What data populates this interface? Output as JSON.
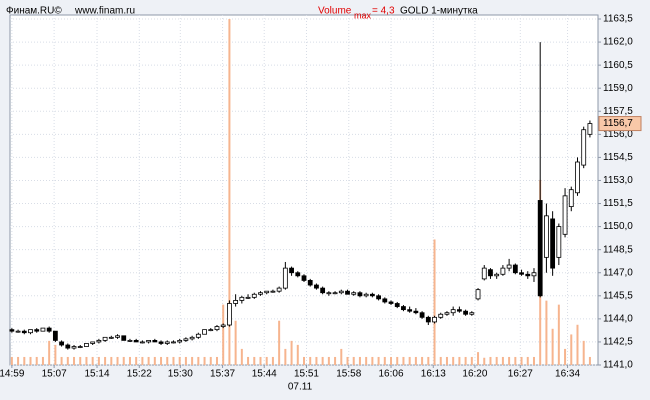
{
  "chart_data": {
    "type": "candlestick",
    "source": "Финам.RU©",
    "site": "www.finam.ru",
    "volume_label": "Volume",
    "volume_sub": "max",
    "volume_max": {
      "value": 4.3,
      "label": "= 4,3"
    },
    "title": "GOLD 1-минутка",
    "date_label": "07.11",
    "last_price": {
      "value": 1156.7,
      "label": "1156,7"
    },
    "candle_color_up": "#ffffff",
    "candle_color_down": "#000000",
    "volume_color": "#f6b48e",
    "xlim": [
      -0.3,
      94.3
    ],
    "xticks": [
      {
        "value": 0,
        "label": "14:59"
      },
      {
        "value": 6.8,
        "label": "15:07"
      },
      {
        "value": 13.7,
        "label": "15:14"
      },
      {
        "value": 20.5,
        "label": "15:22"
      },
      {
        "value": 27.1,
        "label": "15:30"
      },
      {
        "value": 33.9,
        "label": "15:37"
      },
      {
        "value": 40.6,
        "label": "15:44"
      },
      {
        "value": 47.4,
        "label": "15:51"
      },
      {
        "value": 54.2,
        "label": "15:58"
      },
      {
        "value": 61.0,
        "label": "16:06"
      },
      {
        "value": 67.8,
        "label": "16:13"
      },
      {
        "value": 74.5,
        "label": "16:20"
      },
      {
        "value": 81.8,
        "label": "16:27"
      },
      {
        "value": 89.4,
        "label": "16:34"
      }
    ],
    "ylim": [
      1141.0,
      1163.5
    ],
    "yticks": [
      {
        "value": 1141.0,
        "label": "1141,0"
      },
      {
        "value": 1142.5,
        "label": "1142,5"
      },
      {
        "value": 1144.0,
        "label": "1144,0"
      },
      {
        "value": 1145.5,
        "label": "1145,5"
      },
      {
        "value": 1147.0,
        "label": "1147,0"
      },
      {
        "value": 1148.5,
        "label": "1148,5"
      },
      {
        "value": 1150.0,
        "label": "1150,0"
      },
      {
        "value": 1151.5,
        "label": "1151,5"
      },
      {
        "value": 1153.0,
        "label": "1153,0"
      },
      {
        "value": 1154.5,
        "label": "1154,5"
      },
      {
        "value": 1156.0,
        "label": "1156,0"
      },
      {
        "value": 1157.5,
        "label": "1157,5"
      },
      {
        "value": 1159.0,
        "label": "1159,0"
      },
      {
        "value": 1160.5,
        "label": "1160,5"
      },
      {
        "value": 1162.0,
        "label": "1162,0"
      },
      {
        "value": 1163.5,
        "label": "1163,5"
      }
    ],
    "grid": true,
    "candles": [
      [
        1143.3,
        1143.4,
        1143.1,
        1143.2
      ],
      [
        1143.2,
        1143.3,
        1143.1,
        1143.2
      ],
      [
        1143.2,
        1143.3,
        1143.0,
        1143.1
      ],
      [
        1143.1,
        1143.3,
        1143.0,
        1143.3
      ],
      [
        1143.3,
        1143.4,
        1143.1,
        1143.2
      ],
      [
        1143.2,
        1143.4,
        1143.2,
        1143.4
      ],
      [
        1143.4,
        1143.5,
        1143.1,
        1143.2
      ],
      [
        1143.2,
        1143.2,
        1142.5,
        1142.6
      ],
      [
        1142.5,
        1142.6,
        1142.2,
        1142.3
      ],
      [
        1142.3,
        1142.4,
        1142.0,
        1142.1
      ],
      [
        1142.1,
        1142.3,
        1142.0,
        1142.2
      ],
      [
        1142.2,
        1142.3,
        1142.1,
        1142.2
      ],
      [
        1142.2,
        1142.4,
        1142.2,
        1142.4
      ],
      [
        1142.4,
        1142.5,
        1142.3,
        1142.5
      ],
      [
        1142.5,
        1142.7,
        1142.4,
        1142.6
      ],
      [
        1142.6,
        1142.8,
        1142.5,
        1142.8
      ],
      [
        1142.8,
        1142.9,
        1142.7,
        1142.8
      ],
      [
        1142.8,
        1143.0,
        1142.7,
        1142.9
      ],
      [
        1142.9,
        1142.9,
        1142.6,
        1142.6
      ],
      [
        1142.6,
        1142.7,
        1142.5,
        1142.6
      ],
      [
        1142.6,
        1142.7,
        1142.5,
        1142.5
      ],
      [
        1142.5,
        1142.6,
        1142.4,
        1142.5
      ],
      [
        1142.5,
        1142.6,
        1142.4,
        1142.6
      ],
      [
        1142.6,
        1142.7,
        1142.5,
        1142.5
      ],
      [
        1142.5,
        1142.6,
        1142.3,
        1142.4
      ],
      [
        1142.4,
        1142.6,
        1142.3,
        1142.5
      ],
      [
        1142.5,
        1142.6,
        1142.4,
        1142.5
      ],
      [
        1142.5,
        1142.7,
        1142.4,
        1142.6
      ],
      [
        1142.6,
        1142.8,
        1142.5,
        1142.7
      ],
      [
        1142.7,
        1142.9,
        1142.6,
        1142.8
      ],
      [
        1142.8,
        1143.1,
        1142.7,
        1143.0
      ],
      [
        1143.0,
        1143.3,
        1143.0,
        1143.3
      ],
      [
        1143.3,
        1143.4,
        1143.2,
        1143.3
      ],
      [
        1143.3,
        1143.6,
        1143.2,
        1143.5
      ],
      [
        1143.5,
        1143.7,
        1143.4,
        1143.6
      ],
      [
        1143.6,
        1145.2,
        1143.5,
        1145.0
      ],
      [
        1145.0,
        1145.6,
        1144.8,
        1145.2
      ],
      [
        1145.2,
        1145.5,
        1145.0,
        1145.4
      ],
      [
        1145.4,
        1145.6,
        1145.3,
        1145.4
      ],
      [
        1145.4,
        1145.7,
        1145.3,
        1145.6
      ],
      [
        1145.6,
        1145.8,
        1145.5,
        1145.7
      ],
      [
        1145.7,
        1145.8,
        1145.6,
        1145.8
      ],
      [
        1145.8,
        1145.9,
        1145.7,
        1145.8
      ],
      [
        1145.8,
        1146.1,
        1145.7,
        1146.0
      ],
      [
        1146.0,
        1147.7,
        1145.9,
        1147.3
      ],
      [
        1147.3,
        1147.4,
        1146.8,
        1147.0
      ],
      [
        1147.0,
        1147.1,
        1146.7,
        1146.8
      ],
      [
        1146.8,
        1146.9,
        1146.4,
        1146.5
      ],
      [
        1146.5,
        1146.6,
        1146.1,
        1146.2
      ],
      [
        1146.2,
        1146.3,
        1145.9,
        1146.0
      ],
      [
        1146.0,
        1146.1,
        1145.6,
        1145.7
      ],
      [
        1145.7,
        1145.8,
        1145.5,
        1145.7
      ],
      [
        1145.7,
        1145.8,
        1145.6,
        1145.7
      ],
      [
        1145.7,
        1145.9,
        1145.6,
        1145.8
      ],
      [
        1145.8,
        1145.9,
        1145.6,
        1145.6
      ],
      [
        1145.6,
        1145.8,
        1145.5,
        1145.7
      ],
      [
        1145.7,
        1145.8,
        1145.4,
        1145.5
      ],
      [
        1145.5,
        1145.7,
        1145.4,
        1145.6
      ],
      [
        1145.6,
        1145.7,
        1145.4,
        1145.5
      ],
      [
        1145.5,
        1145.6,
        1145.2,
        1145.3
      ],
      [
        1145.3,
        1145.4,
        1145.0,
        1145.1
      ],
      [
        1145.1,
        1145.2,
        1144.9,
        1145.0
      ],
      [
        1145.0,
        1145.1,
        1144.7,
        1144.8
      ],
      [
        1144.8,
        1144.9,
        1144.5,
        1144.6
      ],
      [
        1144.6,
        1144.8,
        1144.4,
        1144.5
      ],
      [
        1144.5,
        1144.7,
        1144.3,
        1144.4
      ],
      [
        1144.4,
        1144.5,
        1144.0,
        1144.1
      ],
      [
        1144.1,
        1144.2,
        1143.6,
        1143.8
      ],
      [
        1143.8,
        1144.2,
        1143.7,
        1144.1
      ],
      [
        1144.1,
        1144.4,
        1144.0,
        1144.3
      ],
      [
        1144.3,
        1144.5,
        1144.2,
        1144.4
      ],
      [
        1144.4,
        1144.8,
        1144.2,
        1144.6
      ],
      [
        1144.6,
        1144.8,
        1144.4,
        1144.5
      ],
      [
        1144.5,
        1144.6,
        1144.2,
        1144.3
      ],
      [
        1144.3,
        1144.5,
        1144.2,
        1144.4
      ],
      [
        1145.3,
        1146.0,
        1145.2,
        1145.9
      ],
      [
        1146.6,
        1147.5,
        1146.5,
        1147.3
      ],
      [
        1147.2,
        1147.3,
        1146.6,
        1146.8
      ],
      [
        1146.8,
        1147.0,
        1146.6,
        1146.9
      ],
      [
        1146.9,
        1147.5,
        1146.8,
        1147.3
      ],
      [
        1147.3,
        1147.9,
        1147.1,
        1147.5
      ],
      [
        1147.5,
        1147.6,
        1146.9,
        1147.0
      ],
      [
        1147.0,
        1147.2,
        1146.8,
        1146.9
      ],
      [
        1146.9,
        1147.1,
        1146.6,
        1146.8
      ],
      [
        1146.8,
        1147.3,
        1146.4,
        1147.0
      ],
      [
        1151.7,
        1162.0,
        1145.4,
        1145.5
      ],
      [
        1148.0,
        1151.5,
        1147.0,
        1150.7
      ],
      [
        1150.5,
        1151.0,
        1146.8,
        1147.3
      ],
      [
        1148.0,
        1150.2,
        1147.5,
        1150.0
      ],
      [
        1149.5,
        1152.5,
        1149.3,
        1152.0
      ],
      [
        1151.3,
        1152.6,
        1151.0,
        1152.4
      ],
      [
        1152.2,
        1154.5,
        1152.0,
        1154.2
      ],
      [
        1154.0,
        1156.5,
        1153.8,
        1156.3
      ],
      [
        1156.0,
        1156.9,
        1155.8,
        1156.7
      ]
    ],
    "volume": [
      0.1,
      0.1,
      0.1,
      0.1,
      0.1,
      0.1,
      0.3,
      0.25,
      0.1,
      0.1,
      0.1,
      0.1,
      0.1,
      0.1,
      0.1,
      0.1,
      0.1,
      0.1,
      0.1,
      0.1,
      0.1,
      0.1,
      0.1,
      0.1,
      0.1,
      0.1,
      0.1,
      0.1,
      0.1,
      0.1,
      0.1,
      0.1,
      0.1,
      0.1,
      0.75,
      4.3,
      0.55,
      0.2,
      0.1,
      0.1,
      0.1,
      0.1,
      0.1,
      0.55,
      0.2,
      0.3,
      0.25,
      0.1,
      0.1,
      0.1,
      0.1,
      0.1,
      0.1,
      0.2,
      0.1,
      0.1,
      0.1,
      0.1,
      0.1,
      0.1,
      0.1,
      0.1,
      0.1,
      0.1,
      0.1,
      0.1,
      0.1,
      0.1,
      1.56,
      0.1,
      0.1,
      0.1,
      0.1,
      0.1,
      0.1,
      0.16,
      0.09,
      0.1,
      0.1,
      0.1,
      0.1,
      0.1,
      0.1,
      0.1,
      0.1,
      2.3,
      0.8,
      0.45,
      0.75,
      0.2,
      0.38,
      0.5,
      0.3,
      0.1
    ]
  }
}
